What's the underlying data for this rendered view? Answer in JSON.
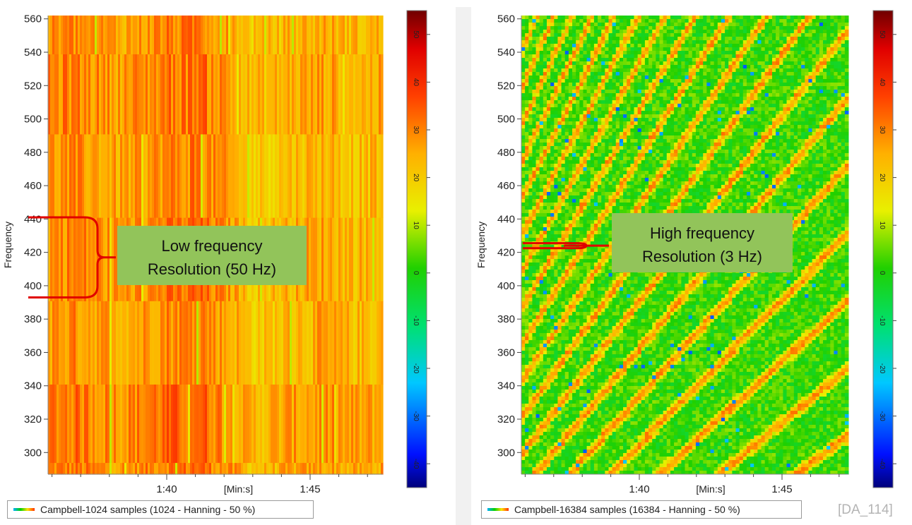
{
  "chart_data": [
    {
      "type": "heatmap",
      "title": "",
      "ylabel": "Frequency",
      "xlabel": "[Min:s]",
      "ylim": [
        287,
        562
      ],
      "yticks": [
        300,
        320,
        340,
        360,
        380,
        400,
        420,
        440,
        460,
        480,
        500,
        520,
        540,
        560
      ],
      "xticks": [
        "1:40",
        "1:45"
      ],
      "colorbar": {
        "min": -45,
        "max": 55,
        "ticks": [
          50,
          40,
          30,
          20,
          10,
          0,
          -10,
          -20,
          -30,
          -40
        ]
      },
      "frequency_resolution_hz": 50,
      "frequency_bands": [
        287,
        294,
        341,
        391,
        441,
        491,
        539,
        562
      ],
      "legend": "Campbell-1024 samples (1024 - Hanning - 50 %)",
      "annotation": {
        "line1": "Low frequency",
        "line2": "Resolution (50 Hz)"
      }
    },
    {
      "type": "heatmap",
      "title": "",
      "ylabel": "Frequency",
      "xlabel": "[Min:s]",
      "ylim": [
        287,
        562
      ],
      "yticks": [
        300,
        320,
        340,
        360,
        380,
        400,
        420,
        440,
        460,
        480,
        500,
        520,
        540,
        560
      ],
      "xticks": [
        "1:40",
        "1:45"
      ],
      "colorbar": {
        "min": -45,
        "max": 55,
        "ticks": [
          50,
          40,
          30,
          20,
          10,
          0,
          -10,
          -20,
          -30,
          -40
        ]
      },
      "frequency_resolution_hz": 3,
      "legend": "Campbell-16384 samples (16384 - Hanning - 50 %)",
      "annotation": {
        "line1": "High frequency",
        "line2": "Resolution (3 Hz)"
      }
    }
  ],
  "watermark": "[DA_114]"
}
